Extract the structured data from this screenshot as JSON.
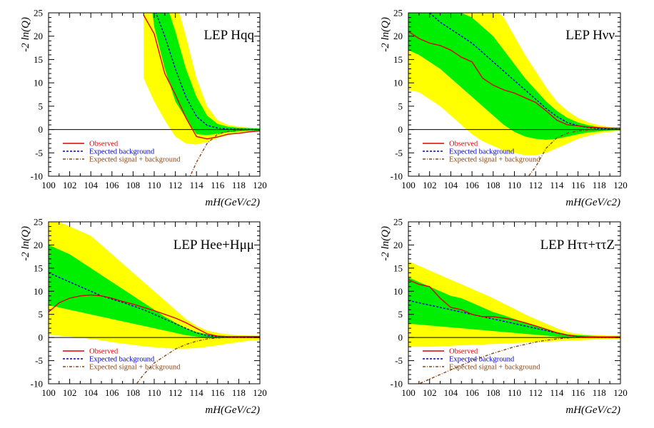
{
  "colors": {
    "band2": "#ffff00",
    "band1": "#00ee00",
    "observed": "#e00000",
    "background": "#0000cc",
    "signal": "#8b4513",
    "axis": "#000000"
  },
  "chart_data": [
    {
      "type": "line",
      "title": "LEP Hqq",
      "ylabel": "-2 ln(Q)",
      "xlabel": "mH(GeV/c2)",
      "xlim": [
        100,
        120
      ],
      "ylim": [
        -10,
        25
      ],
      "xticks": [
        "100",
        "102",
        "104",
        "106",
        "108",
        "110",
        "112",
        "114",
        "116",
        "118",
        "120"
      ],
      "yticks": [
        "-10",
        "-5",
        "0",
        "5",
        "10",
        "15",
        "20",
        "25"
      ],
      "legend": [
        "Observed",
        "Expected background",
        "Expected signal + background"
      ],
      "x": [
        100,
        101,
        102,
        103,
        104,
        105,
        106,
        107,
        108,
        109,
        110,
        111,
        112,
        113,
        114,
        115,
        116,
        117,
        118,
        119,
        120
      ],
      "series": {
        "observed": [
          null,
          null,
          null,
          null,
          null,
          null,
          null,
          null,
          null,
          24.5,
          20.5,
          12,
          7.5,
          2.5,
          -1.5,
          -2,
          -1.6,
          -1,
          -0.8,
          -0.5,
          -0.3
        ],
        "background": [
          null,
          null,
          null,
          null,
          null,
          null,
          null,
          null,
          null,
          null,
          26,
          20,
          13,
          7,
          2.8,
          0.9,
          0.3,
          0.1,
          0.05,
          0.02,
          0
        ],
        "signal_background": [
          null,
          null,
          null,
          null,
          null,
          null,
          null,
          null,
          null,
          null,
          null,
          null,
          null,
          -12,
          -7,
          -3,
          -1,
          -0.4,
          -0.15,
          -0.05,
          0
        ],
        "band1_upper": [
          null,
          null,
          null,
          null,
          null,
          null,
          null,
          null,
          null,
          30,
          30,
          28,
          21,
          13,
          7,
          3,
          1.2,
          0.6,
          0.4,
          0.3,
          0.2
        ],
        "band1_lower": [
          null,
          null,
          null,
          null,
          null,
          null,
          null,
          null,
          null,
          null,
          22,
          13,
          6,
          2.4,
          -1,
          -1.2,
          -0.9,
          -0.6,
          -0.4,
          -0.3,
          -0.2
        ],
        "band2_upper": [
          null,
          null,
          null,
          null,
          null,
          null,
          null,
          null,
          null,
          30,
          30,
          30,
          28,
          20,
          11,
          5,
          2,
          1,
          0.6,
          0.4,
          0.3
        ],
        "band2_lower": [
          null,
          null,
          null,
          null,
          null,
          null,
          30,
          24,
          17,
          11,
          6,
          2,
          -1.5,
          -3,
          -3.2,
          -2.7,
          -1.8,
          -1.2,
          -0.8,
          -0.5,
          -0.3
        ]
      }
    },
    {
      "type": "line",
      "title": "LEP Hνν",
      "ylabel": "-2 ln(Q)",
      "xlabel": "mH(GeV/c2)",
      "xlim": [
        100,
        120
      ],
      "ylim": [
        -10,
        25
      ],
      "xticks": [
        "100",
        "102",
        "104",
        "106",
        "108",
        "110",
        "112",
        "114",
        "116",
        "118",
        "120"
      ],
      "yticks": [
        "-10",
        "-5",
        "0",
        "5",
        "10",
        "15",
        "20",
        "25"
      ],
      "legend": [
        "Observed",
        "Expected background",
        "Expected signal + background"
      ],
      "x": [
        100,
        101,
        102,
        103,
        104,
        105,
        106,
        107,
        108,
        109,
        110,
        111,
        112,
        113,
        114,
        115,
        116,
        117,
        118,
        119,
        120
      ],
      "series": {
        "observed": [
          21,
          19.5,
          18.5,
          18,
          17,
          15.5,
          14.5,
          11,
          9.5,
          8.5,
          7.8,
          6.8,
          5.8,
          4,
          2,
          1,
          0.8,
          0.5,
          0.4,
          0.3,
          0.3
        ],
        "background": [
          null,
          null,
          25,
          23,
          21.5,
          20,
          18.5,
          16.5,
          14.5,
          12.5,
          10.5,
          8.5,
          6.5,
          4.5,
          2.8,
          1.5,
          0.8,
          0.4,
          0.2,
          0.1,
          0
        ],
        "signal_background": [
          null,
          null,
          null,
          null,
          null,
          null,
          null,
          null,
          null,
          null,
          null,
          -11,
          -8,
          -4,
          -1.8,
          -0.8,
          -0.3,
          -0.1,
          0,
          0,
          0
        ],
        "band1_upper": [
          26,
          26,
          26,
          26,
          26,
          25,
          24,
          22,
          20,
          17,
          14,
          11,
          8.5,
          6,
          4,
          2.5,
          1.5,
          0.9,
          0.5,
          0.3,
          0.2
        ],
        "band1_lower": [
          17,
          16,
          14.5,
          13,
          11,
          9,
          7,
          5,
          3,
          1,
          -0.5,
          -1.5,
          -2,
          -2.2,
          -2,
          -1.5,
          -1,
          -0.6,
          -0.4,
          -0.2,
          -0.1
        ],
        "band2_upper": [
          26,
          26,
          26,
          26,
          26,
          26,
          26,
          26,
          26,
          24,
          20,
          16,
          12.5,
          9,
          6,
          4,
          2.5,
          1.5,
          0.9,
          0.5,
          0.3
        ],
        "band2_lower": [
          8.5,
          8,
          6.5,
          5,
          3,
          1,
          -1,
          -2.5,
          -3.5,
          -4.5,
          -5,
          -5.5,
          -5.5,
          -5,
          -4,
          -3,
          -2,
          -1.3,
          -0.8,
          -0.5,
          -0.3
        ]
      }
    },
    {
      "type": "line",
      "title": "LEP Hee+Hμμ",
      "ylabel": "-2 ln(Q)",
      "xlabel": "mH(GeV/c2)",
      "xlim": [
        100,
        120
      ],
      "ylim": [
        -10,
        25
      ],
      "xticks": [
        "100",
        "102",
        "104",
        "106",
        "108",
        "110",
        "112",
        "114",
        "116",
        "118",
        "120"
      ],
      "yticks": [
        "-10",
        "-5",
        "0",
        "5",
        "10",
        "15",
        "20",
        "25"
      ],
      "legend": [
        "Observed",
        "Expected background",
        "Expected signal + background"
      ],
      "x": [
        100,
        101,
        102,
        103,
        104,
        105,
        106,
        107,
        108,
        109,
        110,
        111,
        112,
        113,
        114,
        115,
        116,
        117,
        118,
        119,
        120
      ],
      "series": {
        "observed": [
          5.5,
          7.5,
          8.5,
          9,
          9.2,
          9,
          8.5,
          7.8,
          7.2,
          6.5,
          5.8,
          5,
          4.2,
          3.2,
          2,
          0.8,
          0.3,
          0.2,
          0.2,
          0.2,
          0.2
        ],
        "background": [
          14,
          13,
          12,
          11,
          10,
          9,
          8.3,
          7.6,
          6.8,
          6,
          5,
          4,
          3,
          2,
          1,
          0.4,
          0.2,
          0.1,
          0.05,
          0,
          0
        ],
        "signal_background": [
          null,
          null,
          null,
          null,
          null,
          null,
          null,
          null,
          -11,
          -8,
          -5.5,
          -4,
          -2.5,
          -1.5,
          -0.8,
          -0.3,
          -0.1,
          0,
          0,
          0,
          0
        ],
        "band1_upper": [
          20,
          19,
          18,
          16.5,
          15,
          13.5,
          12,
          10.5,
          9,
          7.5,
          6,
          4.5,
          3.2,
          2,
          1.2,
          0.7,
          0.4,
          0.3,
          0.3,
          0.3,
          0.3
        ],
        "band1_lower": [
          7,
          6.5,
          6,
          5.5,
          5,
          4.5,
          4,
          3.5,
          3,
          2.5,
          2,
          1.5,
          1,
          0.5,
          0.2,
          0,
          -0.1,
          -0.1,
          -0.1,
          -0.1,
          -0.1
        ],
        "band2_upper": [
          25,
          25,
          24,
          23,
          22,
          20,
          18,
          16,
          14,
          12,
          10,
          8,
          6,
          4,
          2.5,
          1.5,
          1,
          0.7,
          0.5,
          0.4,
          0.4
        ],
        "band2_lower": [
          0.5,
          0.4,
          0.2,
          0,
          -0.3,
          -0.6,
          -1,
          -1.3,
          -1.6,
          -1.9,
          -2.1,
          -2.3,
          -2.4,
          -2.4,
          -2.3,
          -2,
          -1.7,
          -1.3,
          -1,
          -0.7,
          -0.5
        ]
      }
    },
    {
      "type": "line",
      "title": "LEP Hττ+ττZ",
      "ylabel": "-2 ln(Q)",
      "xlabel": "mH(GeV/c2)",
      "xlim": [
        100,
        120
      ],
      "ylim": [
        -10,
        25
      ],
      "xticks": [
        "100",
        "102",
        "104",
        "106",
        "108",
        "110",
        "112",
        "114",
        "116",
        "118",
        "120"
      ],
      "yticks": [
        "-10",
        "-5",
        "0",
        "5",
        "10",
        "15",
        "20",
        "25"
      ],
      "legend": [
        "Observed",
        "Expected background",
        "Expected signal + background"
      ],
      "x": [
        100,
        101,
        102,
        103,
        104,
        105,
        106,
        107,
        108,
        109,
        110,
        111,
        112,
        113,
        114,
        115,
        116,
        117,
        118,
        119,
        120
      ],
      "series": {
        "observed": [
          12.5,
          11.5,
          11,
          8.5,
          6.5,
          6,
          5,
          4.5,
          4.5,
          4.2,
          3.8,
          3.2,
          2.5,
          1.8,
          1,
          0.5,
          0.2,
          0.1,
          0.1,
          0.1,
          0.1
        ],
        "background": [
          8,
          7.5,
          7,
          6.5,
          6,
          5.5,
          5,
          4.5,
          4,
          3.5,
          3,
          2.5,
          2,
          1.5,
          1,
          0.5,
          0.2,
          0.1,
          0,
          0,
          0
        ],
        "signal_background": [
          -11,
          -10,
          -9,
          -8,
          -7,
          -6,
          -5,
          -4.2,
          -3.4,
          -2.7,
          -2,
          -1.5,
          -1,
          -0.6,
          -0.3,
          -0.1,
          0,
          0,
          0,
          0,
          0
        ],
        "band1_upper": [
          13,
          12,
          11,
          10,
          9,
          8.5,
          7.5,
          6.5,
          5.5,
          4.8,
          4,
          3.2,
          2.5,
          1.8,
          1.2,
          0.7,
          0.5,
          0.4,
          0.3,
          0.3,
          0.3
        ],
        "band1_lower": [
          3,
          2.8,
          2.6,
          2.4,
          2.2,
          2,
          1.8,
          1.6,
          1.4,
          1.2,
          1,
          0.8,
          0.6,
          0.4,
          0.2,
          0,
          -0.1,
          -0.1,
          -0.1,
          -0.1,
          -0.1
        ],
        "band2_upper": [
          16.5,
          15.5,
          14.5,
          13.5,
          12.5,
          11.5,
          10.5,
          9.5,
          8.5,
          7.3,
          6.2,
          5,
          4,
          3,
          2,
          1.2,
          0.8,
          0.6,
          0.5,
          0.4,
          0.4
        ],
        "band2_lower": [
          -2,
          -2,
          -2,
          -1.9,
          -1.8,
          -1.7,
          -1.6,
          -1.5,
          -1.4,
          -1.3,
          -1.2,
          -1.1,
          -1,
          -0.9,
          -0.8,
          -0.7,
          -0.6,
          -0.5,
          -0.4,
          -0.3,
          -0.3
        ]
      }
    }
  ]
}
